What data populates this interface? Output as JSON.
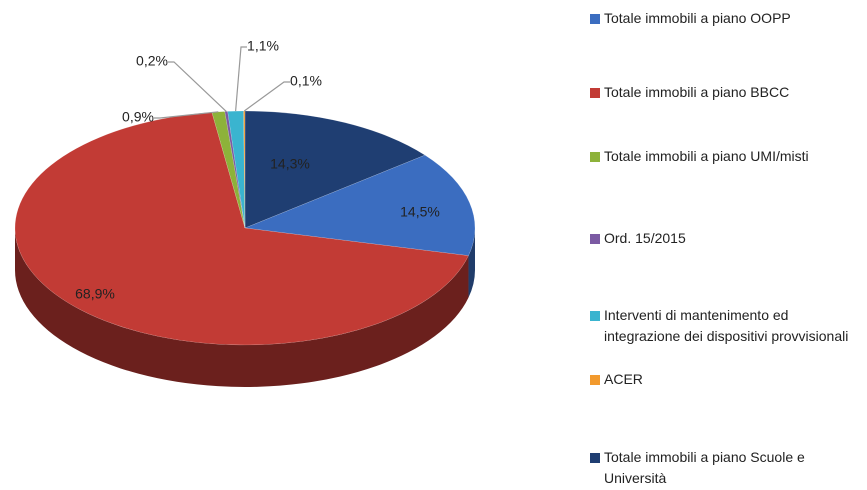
{
  "chart_data": {
    "type": "pie3d",
    "categories": [
      "Totale immobili a piano OOPP",
      "Totale immobili a piano BBCC",
      "Totale immobili a piano UMI/misti",
      "Ord. 15/2015",
      "Interventi di mantenimento ed integrazione dei dispositivi provvisionali",
      "ACER",
      "Totale immobili a piano Scuole e Università"
    ],
    "values": [
      14.5,
      68.9,
      0.9,
      0.2,
      1.1,
      0.1,
      14.3
    ],
    "value_labels": [
      "14,5%",
      "68,9%",
      "0,9%",
      "0,2%",
      "1,1%",
      "0,1%",
      "14,3%"
    ],
    "colors": [
      "#3b6dc0",
      "#c23b35",
      "#8db23a",
      "#7b5aa3",
      "#3ab4cf",
      "#f29a2e",
      "#1f3e72"
    ],
    "legend": "right"
  }
}
